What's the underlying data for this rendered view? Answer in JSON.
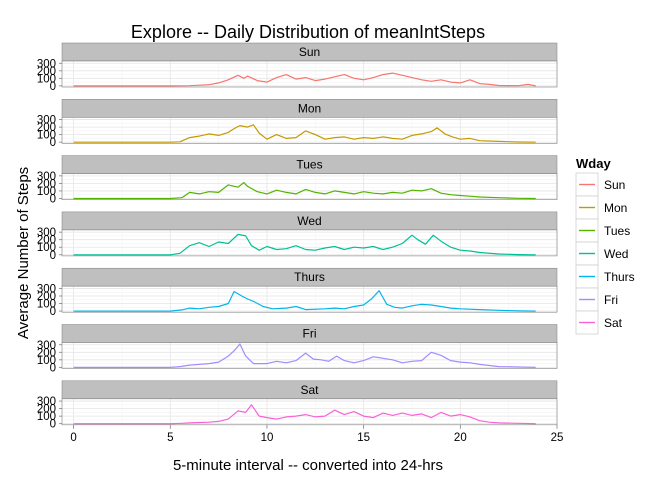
{
  "chart_data": {
    "type": "line",
    "title": "Explore -- Daily Distribution of meanIntSteps",
    "xlabel": "5-minute interval -- converted into 24-hrs",
    "ylabel": "Average Number of Steps",
    "xlim": [
      -0.6,
      25
    ],
    "ylim": [
      -15,
      330
    ],
    "x_ticks": [
      0,
      5,
      10,
      15,
      20,
      25
    ],
    "y_ticks": [
      0,
      100,
      200,
      300
    ],
    "grid": true,
    "legend": {
      "title": "Wday",
      "placement": "right",
      "entries": [
        "Sun",
        "Mon",
        "Tues",
        "Wed",
        "Thurs",
        "Fri",
        "Sat"
      ]
    },
    "colors": {
      "Sun": "#F8766D",
      "Mon": "#C49A00",
      "Tues": "#53B400",
      "Wed": "#00C094",
      "Thurs": "#00B6EB",
      "Fri": "#A58AFF",
      "Sat": "#FB61D7",
      "strip_bg": "#BFBFBF",
      "panel_border": "#7F7F7F"
    },
    "series": [
      {
        "name": "Sun",
        "points": [
          [
            0,
            0
          ],
          [
            3,
            0
          ],
          [
            5,
            0
          ],
          [
            6,
            2
          ],
          [
            7,
            15
          ],
          [
            7.5,
            40
          ],
          [
            8,
            80
          ],
          [
            8.5,
            140
          ],
          [
            8.8,
            100
          ],
          [
            9,
            130
          ],
          [
            9.5,
            70
          ],
          [
            10,
            50
          ],
          [
            10.5,
            110
          ],
          [
            11,
            150
          ],
          [
            11.5,
            90
          ],
          [
            12,
            110
          ],
          [
            12.5,
            70
          ],
          [
            13,
            90
          ],
          [
            13.5,
            120
          ],
          [
            14,
            150
          ],
          [
            14.5,
            100
          ],
          [
            15,
            80
          ],
          [
            15.5,
            110
          ],
          [
            16,
            150
          ],
          [
            16.5,
            170
          ],
          [
            17,
            140
          ],
          [
            17.5,
            110
          ],
          [
            18,
            80
          ],
          [
            18.5,
            60
          ],
          [
            19,
            80
          ],
          [
            19.5,
            50
          ],
          [
            20,
            40
          ],
          [
            20.5,
            80
          ],
          [
            21,
            30
          ],
          [
            21.5,
            20
          ],
          [
            22,
            5
          ],
          [
            23,
            2
          ],
          [
            23.5,
            20
          ],
          [
            23.9,
            0
          ]
        ]
      },
      {
        "name": "Mon",
        "points": [
          [
            0,
            0
          ],
          [
            5,
            0
          ],
          [
            5.5,
            5
          ],
          [
            6,
            60
          ],
          [
            6.5,
            80
          ],
          [
            7,
            110
          ],
          [
            7.5,
            90
          ],
          [
            8,
            130
          ],
          [
            8.3,
            180
          ],
          [
            8.6,
            220
          ],
          [
            9,
            200
          ],
          [
            9.3,
            230
          ],
          [
            9.6,
            120
          ],
          [
            10,
            40
          ],
          [
            10.5,
            100
          ],
          [
            11,
            50
          ],
          [
            11.5,
            60
          ],
          [
            12,
            150
          ],
          [
            12.5,
            100
          ],
          [
            13,
            40
          ],
          [
            13.5,
            60
          ],
          [
            14,
            70
          ],
          [
            14.5,
            40
          ],
          [
            15,
            60
          ],
          [
            15.5,
            50
          ],
          [
            16,
            70
          ],
          [
            16.5,
            50
          ],
          [
            17,
            40
          ],
          [
            17.5,
            90
          ],
          [
            18,
            110
          ],
          [
            18.5,
            140
          ],
          [
            18.8,
            190
          ],
          [
            19.2,
            110
          ],
          [
            19.6,
            70
          ],
          [
            20,
            40
          ],
          [
            20.5,
            50
          ],
          [
            21,
            20
          ],
          [
            22,
            10
          ],
          [
            23,
            2
          ],
          [
            23.9,
            0
          ]
        ]
      },
      {
        "name": "Tues",
        "points": [
          [
            0,
            0
          ],
          [
            5,
            0
          ],
          [
            5.6,
            10
          ],
          [
            6,
            80
          ],
          [
            6.5,
            60
          ],
          [
            7,
            90
          ],
          [
            7.5,
            80
          ],
          [
            8,
            180
          ],
          [
            8.5,
            150
          ],
          [
            8.8,
            210
          ],
          [
            9,
            160
          ],
          [
            9.5,
            90
          ],
          [
            10,
            60
          ],
          [
            10.5,
            110
          ],
          [
            11,
            80
          ],
          [
            11.5,
            60
          ],
          [
            12,
            120
          ],
          [
            12.5,
            80
          ],
          [
            13,
            60
          ],
          [
            13.5,
            100
          ],
          [
            14,
            80
          ],
          [
            14.5,
            60
          ],
          [
            15,
            90
          ],
          [
            15.5,
            70
          ],
          [
            16,
            60
          ],
          [
            16.5,
            80
          ],
          [
            17,
            70
          ],
          [
            17.5,
            110
          ],
          [
            18,
            100
          ],
          [
            18.5,
            130
          ],
          [
            19,
            70
          ],
          [
            19.5,
            50
          ],
          [
            20,
            40
          ],
          [
            20.5,
            30
          ],
          [
            21,
            20
          ],
          [
            22,
            10
          ],
          [
            23,
            2
          ],
          [
            23.9,
            0
          ]
        ]
      },
      {
        "name": "Wed",
        "points": [
          [
            0,
            0
          ],
          [
            5,
            0
          ],
          [
            5.5,
            20
          ],
          [
            6,
            120
          ],
          [
            6.5,
            160
          ],
          [
            7,
            110
          ],
          [
            7.5,
            170
          ],
          [
            8,
            150
          ],
          [
            8.5,
            270
          ],
          [
            8.9,
            250
          ],
          [
            9.2,
            120
          ],
          [
            9.6,
            60
          ],
          [
            10,
            110
          ],
          [
            10.5,
            70
          ],
          [
            11,
            80
          ],
          [
            11.5,
            120
          ],
          [
            12,
            70
          ],
          [
            12.5,
            60
          ],
          [
            13,
            90
          ],
          [
            13.5,
            110
          ],
          [
            14,
            70
          ],
          [
            14.5,
            100
          ],
          [
            15,
            90
          ],
          [
            15.5,
            110
          ],
          [
            16,
            70
          ],
          [
            16.5,
            100
          ],
          [
            17,
            150
          ],
          [
            17.5,
            260
          ],
          [
            17.8,
            200
          ],
          [
            18.2,
            140
          ],
          [
            18.6,
            260
          ],
          [
            19,
            180
          ],
          [
            19.5,
            100
          ],
          [
            20,
            60
          ],
          [
            20.5,
            50
          ],
          [
            21,
            30
          ],
          [
            22,
            10
          ],
          [
            23,
            2
          ],
          [
            23.9,
            0
          ]
        ]
      },
      {
        "name": "Thurs",
        "points": [
          [
            0,
            0
          ],
          [
            5,
            0
          ],
          [
            5.6,
            15
          ],
          [
            6,
            40
          ],
          [
            6.5,
            30
          ],
          [
            7,
            50
          ],
          [
            7.5,
            60
          ],
          [
            8,
            100
          ],
          [
            8.3,
            260
          ],
          [
            8.7,
            200
          ],
          [
            9,
            160
          ],
          [
            9.3,
            130
          ],
          [
            9.8,
            60
          ],
          [
            10.3,
            30
          ],
          [
            11,
            40
          ],
          [
            11.5,
            60
          ],
          [
            12,
            20
          ],
          [
            13,
            30
          ],
          [
            13.5,
            40
          ],
          [
            14,
            30
          ],
          [
            14.5,
            60
          ],
          [
            15,
            80
          ],
          [
            15.4,
            160
          ],
          [
            15.8,
            270
          ],
          [
            16.2,
            90
          ],
          [
            16.6,
            50
          ],
          [
            17,
            40
          ],
          [
            17.5,
            70
          ],
          [
            18,
            90
          ],
          [
            18.5,
            80
          ],
          [
            19,
            60
          ],
          [
            19.5,
            40
          ],
          [
            20,
            30
          ],
          [
            21,
            20
          ],
          [
            22,
            10
          ],
          [
            23,
            2
          ],
          [
            23.9,
            0
          ]
        ]
      },
      {
        "name": "Fri",
        "points": [
          [
            0,
            0
          ],
          [
            5,
            0
          ],
          [
            5.5,
            10
          ],
          [
            6,
            30
          ],
          [
            6.5,
            40
          ],
          [
            7,
            50
          ],
          [
            7.5,
            70
          ],
          [
            8,
            150
          ],
          [
            8.3,
            220
          ],
          [
            8.6,
            310
          ],
          [
            8.9,
            150
          ],
          [
            9.3,
            50
          ],
          [
            10,
            50
          ],
          [
            10.5,
            80
          ],
          [
            11,
            60
          ],
          [
            11.5,
            90
          ],
          [
            12,
            190
          ],
          [
            12.4,
            110
          ],
          [
            12.8,
            100
          ],
          [
            13.2,
            80
          ],
          [
            13.6,
            150
          ],
          [
            14,
            90
          ],
          [
            14.5,
            60
          ],
          [
            15,
            90
          ],
          [
            15.5,
            140
          ],
          [
            16,
            120
          ],
          [
            16.5,
            100
          ],
          [
            17,
            60
          ],
          [
            17.5,
            80
          ],
          [
            18,
            90
          ],
          [
            18.5,
            200
          ],
          [
            19,
            160
          ],
          [
            19.5,
            90
          ],
          [
            20,
            70
          ],
          [
            20.5,
            60
          ],
          [
            21,
            40
          ],
          [
            22,
            10
          ],
          [
            23,
            5
          ],
          [
            23.9,
            0
          ]
        ]
      },
      {
        "name": "Sat",
        "points": [
          [
            0,
            0
          ],
          [
            5,
            0
          ],
          [
            5.6,
            5
          ],
          [
            6,
            10
          ],
          [
            6.5,
            15
          ],
          [
            7,
            20
          ],
          [
            7.5,
            30
          ],
          [
            8,
            60
          ],
          [
            8.5,
            170
          ],
          [
            8.9,
            150
          ],
          [
            9.2,
            250
          ],
          [
            9.6,
            100
          ],
          [
            10,
            80
          ],
          [
            10.5,
            60
          ],
          [
            11,
            90
          ],
          [
            11.5,
            100
          ],
          [
            12,
            120
          ],
          [
            12.5,
            90
          ],
          [
            13,
            100
          ],
          [
            13.5,
            180
          ],
          [
            14,
            120
          ],
          [
            14.5,
            160
          ],
          [
            15,
            100
          ],
          [
            15.5,
            80
          ],
          [
            16,
            140
          ],
          [
            16.5,
            110
          ],
          [
            17,
            140
          ],
          [
            17.5,
            110
          ],
          [
            18,
            130
          ],
          [
            18.5,
            80
          ],
          [
            19,
            150
          ],
          [
            19.5,
            100
          ],
          [
            20,
            120
          ],
          [
            20.5,
            90
          ],
          [
            21,
            40
          ],
          [
            21.5,
            20
          ],
          [
            22,
            10
          ],
          [
            23,
            5
          ],
          [
            23.9,
            0
          ]
        ]
      }
    ]
  }
}
